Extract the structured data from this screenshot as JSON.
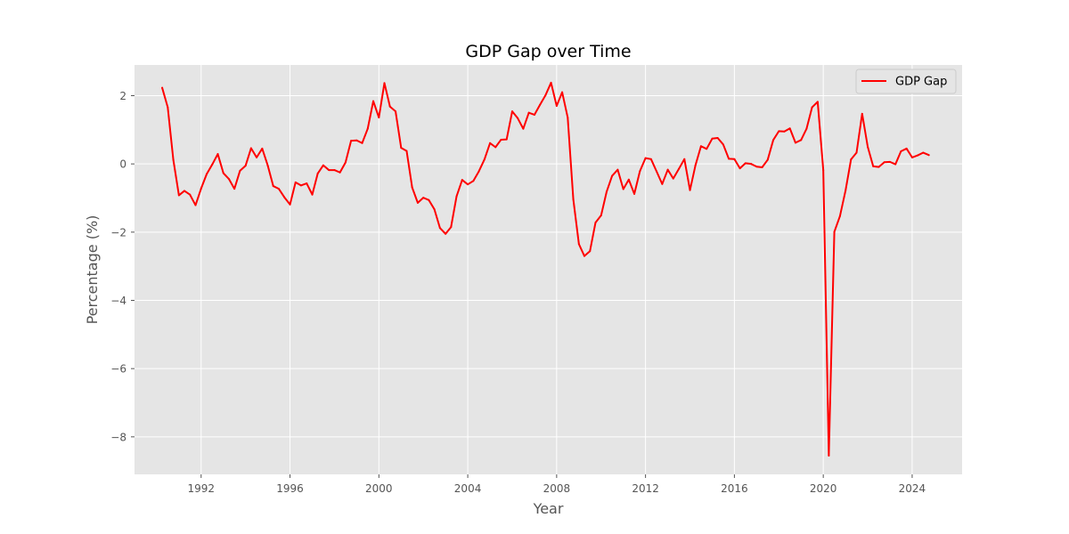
{
  "chart_data": {
    "type": "line",
    "title": "GDP Gap over Time",
    "xlabel": "Year",
    "ylabel": "Percentage (%)",
    "x_axis_type": "date",
    "xlim": [
      "1989-01-01",
      "2026-04-01"
    ],
    "ylim": [
      -9.1,
      2.9
    ],
    "x_ticks": [
      {
        "value": "1992-01-01",
        "label": "1992"
      },
      {
        "value": "1996-01-01",
        "label": "1996"
      },
      {
        "value": "2000-01-01",
        "label": "2000"
      },
      {
        "value": "2004-01-01",
        "label": "2004"
      },
      {
        "value": "2008-01-01",
        "label": "2008"
      },
      {
        "value": "2012-01-01",
        "label": "2012"
      },
      {
        "value": "2016-01-01",
        "label": "2016"
      },
      {
        "value": "2020-01-01",
        "label": "2020"
      },
      {
        "value": "2024-01-01",
        "label": "2024"
      }
    ],
    "y_ticks": [
      {
        "value": -8,
        "label": "−8"
      },
      {
        "value": -6,
        "label": "−6"
      },
      {
        "value": -4,
        "label": "−4"
      },
      {
        "value": -2,
        "label": "−2"
      },
      {
        "value": 0,
        "label": "0"
      },
      {
        "value": 2,
        "label": "2"
      }
    ],
    "grid": true,
    "legend_position": "top-right",
    "series": [
      {
        "name": "GDP Gap",
        "color": "#ff0000",
        "points": [
          [
            "1990-04-01",
            2.23
          ],
          [
            "1990-07-01",
            1.66
          ],
          [
            "1990-10-01",
            0.12
          ],
          [
            "1991-01-01",
            -0.92
          ],
          [
            "1991-04-01",
            -0.79
          ],
          [
            "1991-07-01",
            -0.9
          ],
          [
            "1991-10-01",
            -1.21
          ],
          [
            "1992-01-01",
            -0.72
          ],
          [
            "1992-04-01",
            -0.3
          ],
          [
            "1992-07-01",
            -0.02
          ],
          [
            "1992-10-01",
            0.29
          ],
          [
            "1993-01-01",
            -0.27
          ],
          [
            "1993-04-01",
            -0.44
          ],
          [
            "1993-07-01",
            -0.73
          ],
          [
            "1993-10-01",
            -0.2
          ],
          [
            "1994-01-01",
            -0.05
          ],
          [
            "1994-04-01",
            0.46
          ],
          [
            "1994-07-01",
            0.19
          ],
          [
            "1994-10-01",
            0.45
          ],
          [
            "1995-01-01",
            -0.05
          ],
          [
            "1995-04-01",
            -0.65
          ],
          [
            "1995-07-01",
            -0.73
          ],
          [
            "1995-10-01",
            -0.98
          ],
          [
            "1996-01-01",
            -1.19
          ],
          [
            "1996-04-01",
            -0.54
          ],
          [
            "1996-07-01",
            -0.63
          ],
          [
            "1996-10-01",
            -0.57
          ],
          [
            "1997-01-01",
            -0.9
          ],
          [
            "1997-04-01",
            -0.28
          ],
          [
            "1997-07-01",
            -0.04
          ],
          [
            "1997-10-01",
            -0.18
          ],
          [
            "1998-01-01",
            -0.18
          ],
          [
            "1998-04-01",
            -0.25
          ],
          [
            "1998-07-01",
            0.04
          ],
          [
            "1998-10-01",
            0.68
          ],
          [
            "1999-01-01",
            0.69
          ],
          [
            "1999-04-01",
            0.61
          ],
          [
            "1999-07-01",
            1.03
          ],
          [
            "1999-10-01",
            1.84
          ],
          [
            "2000-01-01",
            1.36
          ],
          [
            "2000-04-01",
            2.37
          ],
          [
            "2000-07-01",
            1.68
          ],
          [
            "2000-10-01",
            1.54
          ],
          [
            "2001-01-01",
            0.47
          ],
          [
            "2001-04-01",
            0.38
          ],
          [
            "2001-07-01",
            -0.69
          ],
          [
            "2001-10-01",
            -1.14
          ],
          [
            "2002-01-01",
            -0.99
          ],
          [
            "2002-04-01",
            -1.06
          ],
          [
            "2002-07-01",
            -1.33
          ],
          [
            "2002-10-01",
            -1.88
          ],
          [
            "2003-01-01",
            -2.05
          ],
          [
            "2003-04-01",
            -1.85
          ],
          [
            "2003-07-01",
            -0.95
          ],
          [
            "2003-10-01",
            -0.47
          ],
          [
            "2004-01-01",
            -0.6
          ],
          [
            "2004-04-01",
            -0.5
          ],
          [
            "2004-07-01",
            -0.22
          ],
          [
            "2004-10-01",
            0.13
          ],
          [
            "2005-01-01",
            0.61
          ],
          [
            "2005-04-01",
            0.49
          ],
          [
            "2005-07-01",
            0.71
          ],
          [
            "2005-10-01",
            0.72
          ],
          [
            "2006-01-01",
            1.54
          ],
          [
            "2006-04-01",
            1.34
          ],
          [
            "2006-07-01",
            1.03
          ],
          [
            "2006-10-01",
            1.5
          ],
          [
            "2007-01-01",
            1.44
          ],
          [
            "2007-04-01",
            1.73
          ],
          [
            "2007-07-01",
            2.01
          ],
          [
            "2007-10-01",
            2.38
          ],
          [
            "2008-01-01",
            1.7
          ],
          [
            "2008-04-01",
            2.1
          ],
          [
            "2008-07-01",
            1.36
          ],
          [
            "2008-10-01",
            -1.04
          ],
          [
            "2009-01-01",
            -2.35
          ],
          [
            "2009-04-01",
            -2.7
          ],
          [
            "2009-07-01",
            -2.56
          ],
          [
            "2009-10-01",
            -1.72
          ],
          [
            "2010-01-01",
            -1.51
          ],
          [
            "2010-04-01",
            -0.82
          ],
          [
            "2010-07-01",
            -0.35
          ],
          [
            "2010-10-01",
            -0.17
          ],
          [
            "2011-01-01",
            -0.74
          ],
          [
            "2011-04-01",
            -0.46
          ],
          [
            "2011-07-01",
            -0.88
          ],
          [
            "2011-10-01",
            -0.21
          ],
          [
            "2012-01-01",
            0.17
          ],
          [
            "2012-04-01",
            0.14
          ],
          [
            "2012-07-01",
            -0.22
          ],
          [
            "2012-10-01",
            -0.59
          ],
          [
            "2013-01-01",
            -0.17
          ],
          [
            "2013-04-01",
            -0.43
          ],
          [
            "2013-07-01",
            -0.15
          ],
          [
            "2013-10-01",
            0.14
          ],
          [
            "2014-01-01",
            -0.77
          ],
          [
            "2014-04-01",
            -0.04
          ],
          [
            "2014-07-01",
            0.52
          ],
          [
            "2014-10-01",
            0.44
          ],
          [
            "2015-01-01",
            0.74
          ],
          [
            "2015-04-01",
            0.76
          ],
          [
            "2015-07-01",
            0.57
          ],
          [
            "2015-10-01",
            0.15
          ],
          [
            "2016-01-01",
            0.14
          ],
          [
            "2016-04-01",
            -0.13
          ],
          [
            "2016-07-01",
            0.02
          ],
          [
            "2016-10-01",
            0.0
          ],
          [
            "2017-01-01",
            -0.08
          ],
          [
            "2017-04-01",
            -0.1
          ],
          [
            "2017-07-01",
            0.12
          ],
          [
            "2017-10-01",
            0.7
          ],
          [
            "2018-01-01",
            0.96
          ],
          [
            "2018-04-01",
            0.95
          ],
          [
            "2018-07-01",
            1.04
          ],
          [
            "2018-10-01",
            0.62
          ],
          [
            "2019-01-01",
            0.7
          ],
          [
            "2019-04-01",
            1.03
          ],
          [
            "2019-07-01",
            1.66
          ],
          [
            "2019-10-01",
            1.82
          ],
          [
            "2020-01-01",
            -0.18
          ],
          [
            "2020-04-01",
            -8.55
          ],
          [
            "2020-07-01",
            -1.99
          ],
          [
            "2020-10-01",
            -1.53
          ],
          [
            "2021-01-01",
            -0.78
          ],
          [
            "2021-04-01",
            0.13
          ],
          [
            "2021-07-01",
            0.33
          ],
          [
            "2021-10-01",
            1.47
          ],
          [
            "2022-01-01",
            0.5
          ],
          [
            "2022-04-01",
            -0.07
          ],
          [
            "2022-07-01",
            -0.09
          ],
          [
            "2022-10-01",
            0.05
          ],
          [
            "2023-01-01",
            0.06
          ],
          [
            "2023-04-01",
            -0.01
          ],
          [
            "2023-07-01",
            0.37
          ],
          [
            "2023-10-01",
            0.45
          ],
          [
            "2024-01-01",
            0.19
          ],
          [
            "2024-04-01",
            0.25
          ],
          [
            "2024-07-01",
            0.33
          ],
          [
            "2024-10-01",
            0.26
          ]
        ]
      }
    ]
  }
}
